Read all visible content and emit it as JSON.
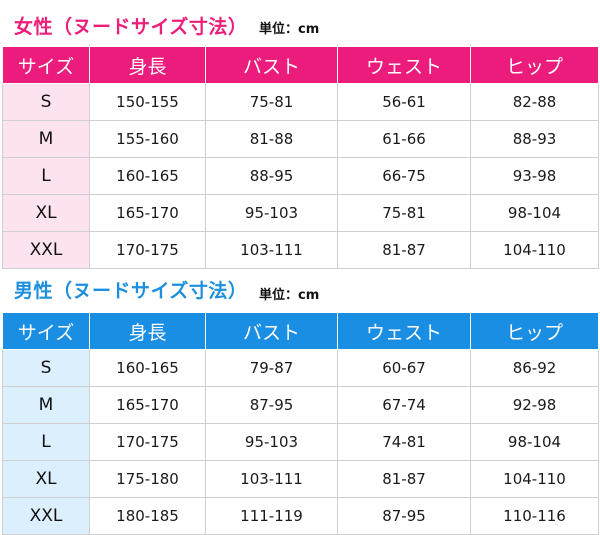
{
  "women": {
    "title": "女性（ヌードサイズ寸法）",
    "unit": "単位：cm",
    "headers": [
      "サイズ",
      "身長",
      "バスト",
      "ウェスト",
      "ヒップ"
    ],
    "rows": [
      [
        "S",
        "150-155",
        "75-81",
        "56-61",
        "82-88"
      ],
      [
        "M",
        "155-160",
        "81-88",
        "61-66",
        "88-93"
      ],
      [
        "L",
        "160-165",
        "88-95",
        "66-75",
        "93-98"
      ],
      [
        "XL",
        "165-170",
        "95-103",
        "75-81",
        "98-104"
      ],
      [
        "XXL",
        "170-175",
        "103-111",
        "81-87",
        "104-110"
      ]
    ]
  },
  "men": {
    "title": "男性（ヌードサイズ寸法）",
    "unit": "単位：cm",
    "headers": [
      "サイズ",
      "身長",
      "バスト",
      "ウェスト",
      "ヒップ"
    ],
    "rows": [
      [
        "S",
        "160-165",
        "79-87",
        "60-67",
        "86-92"
      ],
      [
        "M",
        "165-170",
        "87-95",
        "67-74",
        "92-98"
      ],
      [
        "L",
        "170-175",
        "95-103",
        "74-81",
        "98-104"
      ],
      [
        "XL",
        "175-180",
        "103-111",
        "81-87",
        "104-110"
      ],
      [
        "XXL",
        "180-185",
        "111-119",
        "87-95",
        "110-116"
      ]
    ]
  },
  "colors": {
    "women_accent": "#ec1c7c",
    "women_size_cell": "#fde3ef",
    "men_accent": "#1a8ee3",
    "men_size_cell": "#dceffd"
  }
}
